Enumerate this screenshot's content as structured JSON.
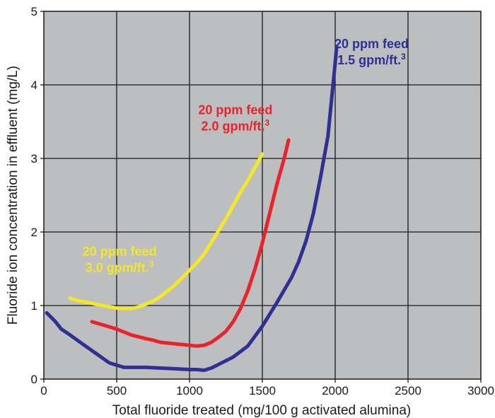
{
  "chart_data": {
    "type": "line",
    "title": "",
    "xlabel": "Total fluoride treated (mg/100 g activated alumina)",
    "ylabel": "Fluoride ion concentration in effluent (mg/L)",
    "xlim": [
      0,
      3000
    ],
    "ylim": [
      0,
      5
    ],
    "x_ticks": [
      "0",
      "500",
      "1000",
      "1500",
      "2000",
      "2500",
      "3000"
    ],
    "y_ticks": [
      "0",
      "1",
      "2",
      "3",
      "4",
      "5"
    ],
    "grid": true,
    "background": "#bcbec0",
    "series": [
      {
        "name_line1": "20 ppm feed",
        "name_line2": "3.0 gpm/ft.",
        "superscript": "3",
        "color": "#f2e829",
        "points": [
          [
            180,
            1.1
          ],
          [
            250,
            1.06
          ],
          [
            330,
            1.03
          ],
          [
            400,
            1.0
          ],
          [
            460,
            0.98
          ],
          [
            520,
            0.96
          ],
          [
            600,
            0.96
          ],
          [
            650,
            0.98
          ],
          [
            700,
            1.02
          ],
          [
            750,
            1.06
          ],
          [
            800,
            1.12
          ],
          [
            850,
            1.2
          ],
          [
            900,
            1.28
          ],
          [
            950,
            1.38
          ],
          [
            1000,
            1.48
          ],
          [
            1050,
            1.58
          ],
          [
            1100,
            1.7
          ],
          [
            1150,
            1.86
          ],
          [
            1200,
            2.02
          ],
          [
            1250,
            2.18
          ],
          [
            1300,
            2.36
          ],
          [
            1350,
            2.54
          ],
          [
            1400,
            2.7
          ],
          [
            1450,
            2.88
          ],
          [
            1500,
            3.06
          ]
        ]
      },
      {
        "name_line1": "20 ppm feed",
        "name_line2": "2.0 gpm/ft.",
        "superscript": "3",
        "color": "#e8232b",
        "points": [
          [
            330,
            0.78
          ],
          [
            400,
            0.74
          ],
          [
            500,
            0.68
          ],
          [
            600,
            0.6
          ],
          [
            700,
            0.55
          ],
          [
            750,
            0.53
          ],
          [
            800,
            0.5
          ],
          [
            850,
            0.49
          ],
          [
            900,
            0.48
          ],
          [
            950,
            0.47
          ],
          [
            1000,
            0.46
          ],
          [
            1050,
            0.45
          ],
          [
            1100,
            0.46
          ],
          [
            1150,
            0.5
          ],
          [
            1200,
            0.57
          ],
          [
            1250,
            0.65
          ],
          [
            1300,
            0.78
          ],
          [
            1350,
            0.96
          ],
          [
            1400,
            1.2
          ],
          [
            1450,
            1.5
          ],
          [
            1500,
            1.85
          ],
          [
            1550,
            2.25
          ],
          [
            1600,
            2.65
          ],
          [
            1650,
            3.0
          ],
          [
            1680,
            3.25
          ]
        ]
      },
      {
        "name_line1": "20 ppm feed",
        "name_line2": "1.5 gpm/ft.",
        "superscript": "3",
        "color": "#2e3192",
        "points": [
          [
            20,
            0.9
          ],
          [
            80,
            0.78
          ],
          [
            120,
            0.68
          ],
          [
            180,
            0.6
          ],
          [
            250,
            0.5
          ],
          [
            350,
            0.36
          ],
          [
            450,
            0.22
          ],
          [
            550,
            0.16
          ],
          [
            600,
            0.16
          ],
          [
            700,
            0.16
          ],
          [
            800,
            0.15
          ],
          [
            900,
            0.14
          ],
          [
            1000,
            0.13
          ],
          [
            1050,
            0.13
          ],
          [
            1100,
            0.12
          ],
          [
            1150,
            0.15
          ],
          [
            1200,
            0.2
          ],
          [
            1300,
            0.3
          ],
          [
            1400,
            0.45
          ],
          [
            1500,
            0.72
          ],
          [
            1600,
            1.04
          ],
          [
            1700,
            1.38
          ],
          [
            1750,
            1.6
          ],
          [
            1800,
            1.88
          ],
          [
            1850,
            2.25
          ],
          [
            1900,
            2.75
          ],
          [
            1950,
            3.3
          ],
          [
            1980,
            3.9
          ],
          [
            2000,
            4.3
          ],
          [
            2010,
            4.52
          ]
        ]
      }
    ]
  }
}
